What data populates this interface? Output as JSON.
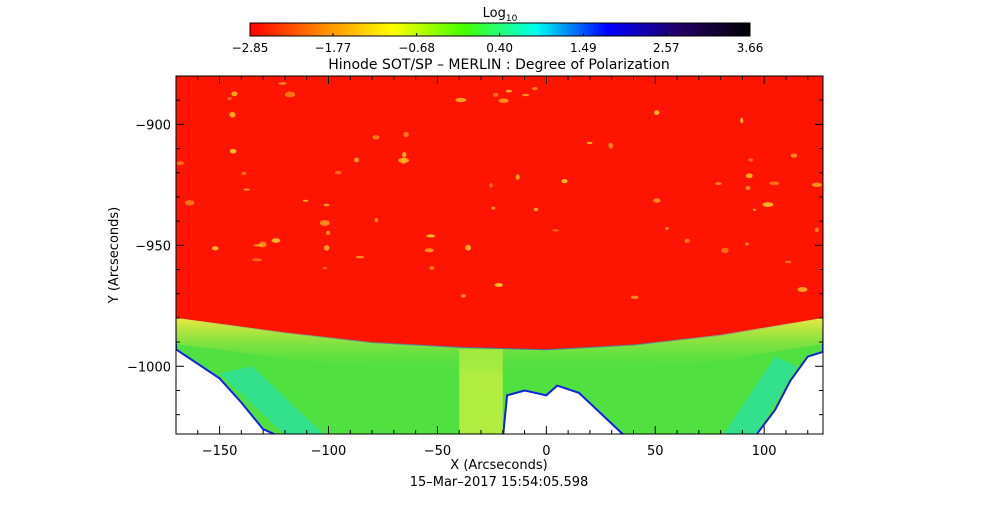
{
  "chart_data": {
    "type": "heatmap",
    "title": "Hinode SOT/SP – MERLIN : Degree of Polarization",
    "xlabel": "X (Arcseconds)",
    "ylabel": "Y (Arcseconds)",
    "timestamp": "15–Mar–2017 15:54:05.598",
    "xlim": [
      -170,
      127
    ],
    "ylim": [
      -1028,
      -880
    ],
    "x_ticks": [
      "−150",
      "−100",
      "−50",
      "0",
      "50",
      "100"
    ],
    "x_tick_values": [
      -150,
      -100,
      -50,
      0,
      50,
      100
    ],
    "y_ticks": [
      "−900",
      "−950",
      "−1000"
    ],
    "y_tick_values": [
      -900,
      -950,
      -1000
    ],
    "colorbar": {
      "label_base": "Log",
      "label_sub": "10",
      "ticks": [
        "−2.85",
        "−1.77",
        "−0.68",
        "0.40",
        "1.49",
        "2.57",
        "3.66"
      ],
      "tick_values": [
        -2.85,
        -1.77,
        -0.68,
        0.4,
        1.49,
        2.57,
        3.66
      ],
      "colors": [
        "#ff0000",
        "#ff8800",
        "#ffff00",
        "#44ff00",
        "#00ffee",
        "#0000ff",
        "#220066",
        "#000000"
      ]
    },
    "colors": {
      "on_disk": "#ff1400",
      "bright_points": "#ffc020",
      "limb_band": "#f0e840",
      "off_limb": "#50e040",
      "edge": "#1020e0"
    },
    "limb": {
      "edge_x": [
        -170,
        -120,
        -80,
        -40,
        0,
        40,
        80,
        127
      ],
      "edge_y": [
        -980,
        -986,
        -990,
        -992,
        -993,
        -991,
        -987,
        -980
      ]
    }
  }
}
